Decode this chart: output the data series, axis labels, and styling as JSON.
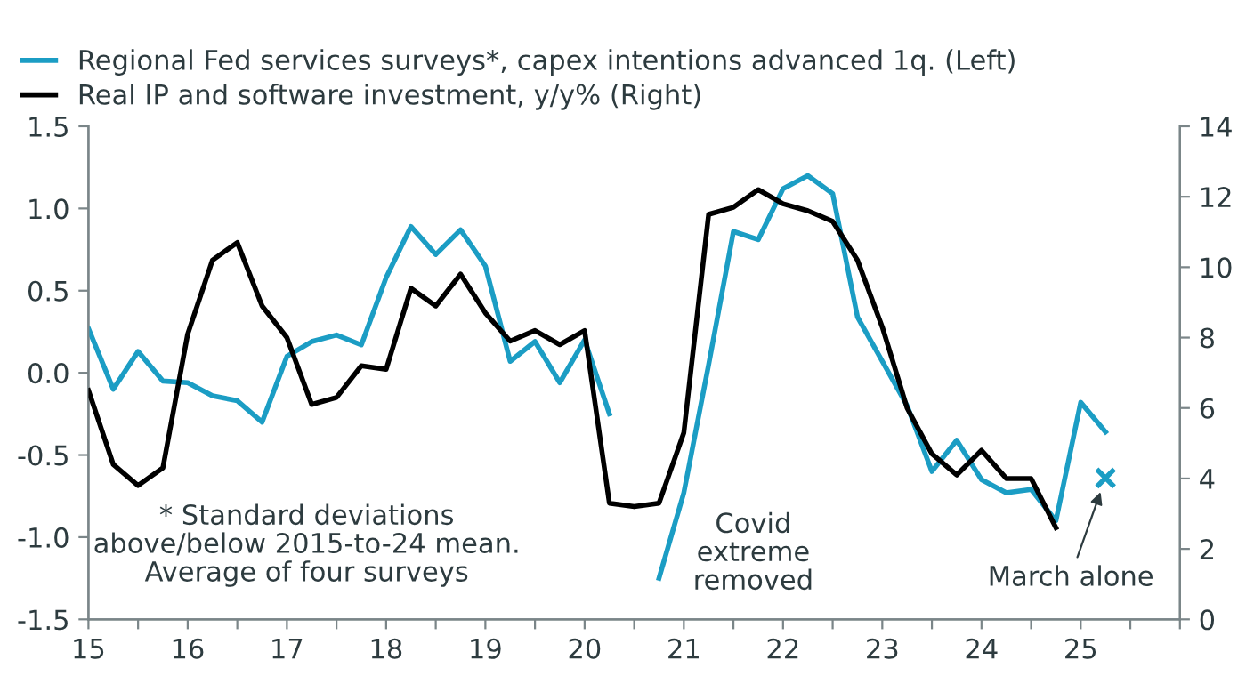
{
  "chart_data": {
    "type": "line",
    "x": [
      15.0,
      15.25,
      15.5,
      15.75,
      16.0,
      16.25,
      16.5,
      16.75,
      17.0,
      17.25,
      17.5,
      17.75,
      18.0,
      18.25,
      18.5,
      18.75,
      19.0,
      19.25,
      19.5,
      19.75,
      20.0,
      20.25,
      20.5,
      20.75,
      21.0,
      21.25,
      21.5,
      21.75,
      22.0,
      22.25,
      22.5,
      22.75,
      23.0,
      23.25,
      23.5,
      23.75,
      24.0,
      24.25,
      24.5,
      24.75,
      25.0,
      25.25
    ],
    "series": [
      {
        "name": "Regional Fed services surveys*, capex intentions advanced 1q. (Left)",
        "color": "#1b9dc4",
        "axis": "y",
        "values": [
          0.27,
          -0.1,
          0.13,
          -0.05,
          -0.06,
          -0.14,
          -0.17,
          -0.3,
          0.1,
          0.19,
          0.23,
          0.17,
          0.58,
          0.89,
          0.72,
          0.87,
          0.65,
          0.07,
          0.19,
          -0.06,
          0.2,
          -0.25,
          null,
          -1.25,
          -0.73,
          0.05,
          0.86,
          0.81,
          1.12,
          1.2,
          1.09,
          0.34,
          0.07,
          -0.2,
          -0.6,
          -0.41,
          -0.65,
          -0.73,
          -0.71,
          -0.9,
          -0.18,
          -0.36
        ]
      },
      {
        "name": "Real IP and software investment, y/y% (Right)",
        "color": "#000000",
        "axis": "y2",
        "values": [
          6.5,
          4.4,
          3.8,
          4.3,
          8.1,
          10.2,
          10.7,
          8.9,
          8.0,
          6.1,
          6.3,
          7.2,
          7.1,
          9.4,
          8.9,
          9.8,
          8.7,
          7.9,
          8.2,
          7.8,
          8.2,
          3.3,
          3.2,
          3.3,
          5.3,
          11.5,
          11.7,
          12.2,
          11.8,
          11.6,
          11.3,
          10.2,
          8.3,
          6.0,
          4.7,
          4.1,
          4.8,
          4.0,
          4.0,
          2.6,
          null,
          null
        ]
      },
      {
        "type": "scatter",
        "marker": "cross",
        "color": "#1b9dc4",
        "axis": "y",
        "x": [
          25.25
        ],
        "values": [
          -0.64
        ]
      }
    ],
    "xlim": [
      15,
      26
    ],
    "xticks": [
      15,
      {
        "value": 15.5,
        "label": null
      },
      16,
      {
        "value": 16.5,
        "label": null
      },
      17,
      {
        "value": 17.5,
        "label": null
      },
      18,
      {
        "value": 18.5,
        "label": null
      },
      19,
      {
        "value": 19.5,
        "label": null
      },
      20,
      {
        "value": 20.5,
        "label": null
      },
      21,
      {
        "value": 21.5,
        "label": null
      },
      22,
      {
        "value": 22.5,
        "label": null
      },
      23,
      {
        "value": 23.5,
        "label": null
      },
      24,
      {
        "value": 24.5,
        "label": null
      },
      25,
      {
        "value": 25.5,
        "label": null
      },
      {
        "value": 26,
        "label": null
      }
    ],
    "ylim": [
      -1.5,
      1.5
    ],
    "yticks": [
      {
        "value": -1.5,
        "label": "-1.5"
      },
      {
        "value": -1.0,
        "label": "-1.0"
      },
      {
        "value": -0.5,
        "label": "-0.5"
      },
      {
        "value": 0,
        "label": "0.0"
      },
      {
        "value": 0.5,
        "label": "0.5"
      },
      {
        "value": 1.0,
        "label": "1.0"
      },
      {
        "value": 1.5,
        "label": "1.5"
      }
    ],
    "y2lim": [
      0,
      14
    ],
    "y2ticks": [
      0,
      2,
      4,
      6,
      8,
      10,
      12,
      14
    ],
    "legend": "top left",
    "grid": false,
    "line_style": "solid",
    "annotations": [
      "* Standard deviations\nabove/below 2015-to-24 mean.\nAverage of four surveys",
      "Covid\nextreme\nremoved",
      "March alone"
    ]
  }
}
